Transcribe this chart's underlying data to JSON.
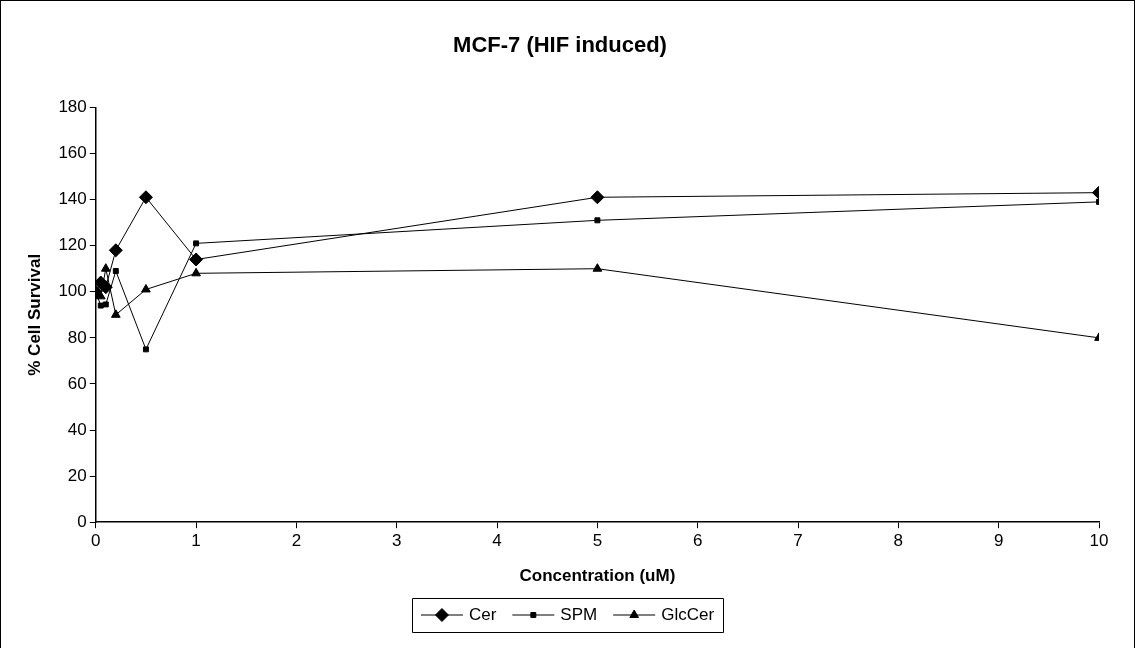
{
  "chart_data": {
    "type": "line",
    "title": "MCF-7 (HIF induced)",
    "xlabel": "Concentration (uM)",
    "ylabel": "% Cell Survival",
    "x": [
      0,
      0.05,
      0.1,
      0.2,
      0.5,
      1,
      5,
      10
    ],
    "series": [
      {
        "name": "Cer",
        "color": "#000000",
        "marker": "diamond",
        "values": [
          100,
          104,
          102,
          118,
          141,
          114,
          141,
          143
        ]
      },
      {
        "name": "SPM",
        "color": "#000000",
        "marker": "square",
        "values": [
          100,
          94,
          94.5,
          109,
          75,
          121,
          131,
          139
        ]
      },
      {
        "name": "GlcCer",
        "color": "#000000",
        "marker": "triangle",
        "values": [
          100,
          98,
          110,
          90,
          101,
          108,
          110,
          80
        ]
      }
    ],
    "xlim": [
      0,
      10
    ],
    "xticks": [
      0,
      1,
      2,
      3,
      4,
      5,
      6,
      7,
      8,
      9,
      10
    ],
    "ylim": [
      0,
      180
    ],
    "yticks": [
      0,
      20,
      40,
      60,
      80,
      100,
      120,
      140,
      160,
      180
    ],
    "grid": false,
    "legend": "bottom",
    "line_style": "solid"
  }
}
